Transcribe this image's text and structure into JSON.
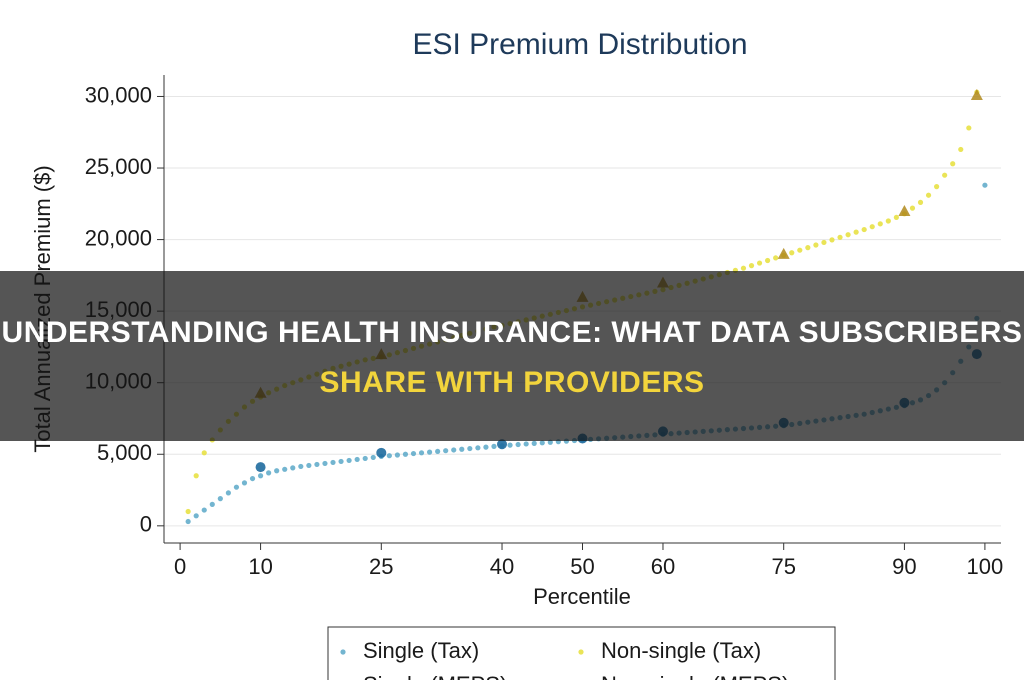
{
  "chart_data": {
    "type": "scatter",
    "title": "ESI Premium Distribution",
    "x_label": "Percentile",
    "y_label": "Total Annualized Premium ($)",
    "xlim": [
      -2,
      102
    ],
    "ylim": [
      -1200,
      31500
    ],
    "xticks": [
      0,
      10,
      25,
      40,
      50,
      60,
      75,
      90,
      100
    ],
    "yticks": [
      0,
      {
        "value": 5000,
        "label": "5,000"
      },
      {
        "value": 10000,
        "label": "10,000"
      },
      {
        "value": 15000,
        "label": "15,000"
      },
      {
        "value": 20000,
        "label": "20,000"
      },
      {
        "value": 25000,
        "label": "25,000"
      },
      {
        "value": 30000,
        "label": "30,000"
      }
    ],
    "grid": true,
    "series": [
      {
        "name": "Single (Tax)",
        "color": "#5aa8c8",
        "marker": "dot",
        "x": [
          1,
          2,
          3,
          4,
          5,
          6,
          7,
          8,
          9,
          10,
          11,
          12,
          13,
          14,
          15,
          16,
          17,
          18,
          19,
          20,
          21,
          22,
          23,
          24,
          25,
          26,
          27,
          28,
          29,
          30,
          31,
          32,
          33,
          34,
          35,
          36,
          37,
          38,
          39,
          40,
          41,
          42,
          43,
          44,
          45,
          46,
          47,
          48,
          49,
          50,
          51,
          52,
          53,
          54,
          55,
          56,
          57,
          58,
          59,
          60,
          61,
          62,
          63,
          64,
          65,
          66,
          67,
          68,
          69,
          70,
          71,
          72,
          73,
          74,
          75,
          76,
          77,
          78,
          79,
          80,
          81,
          82,
          83,
          84,
          85,
          86,
          87,
          88,
          89,
          90,
          91,
          92,
          93,
          94,
          95,
          96,
          97,
          98,
          99,
          100
        ],
        "values": [
          300,
          700,
          1100,
          1500,
          1900,
          2300,
          2700,
          3000,
          3300,
          3500,
          3700,
          3850,
          3950,
          4050,
          4150,
          4220,
          4290,
          4360,
          4430,
          4500,
          4570,
          4640,
          4710,
          4780,
          4850,
          4900,
          4950,
          5000,
          5050,
          5100,
          5150,
          5200,
          5250,
          5300,
          5350,
          5400,
          5450,
          5500,
          5550,
          5600,
          5640,
          5680,
          5720,
          5760,
          5800,
          5840,
          5880,
          5920,
          5960,
          6000,
          6040,
          6080,
          6120,
          6160,
          6200,
          6240,
          6280,
          6320,
          6360,
          6400,
          6440,
          6480,
          6520,
          6560,
          6600,
          6640,
          6680,
          6720,
          6760,
          6800,
          6840,
          6880,
          6920,
          6960,
          7000,
          7080,
          7160,
          7240,
          7320,
          7400,
          7480,
          7560,
          7640,
          7720,
          7800,
          7920,
          8040,
          8160,
          8280,
          8400,
          8600,
          8800,
          9100,
          9500,
          10000,
          10700,
          11500,
          12500,
          14500,
          23800
        ]
      },
      {
        "name": "Non-single (Tax)",
        "color": "#e6df3a",
        "marker": "dot",
        "x": [
          1,
          2,
          3,
          4,
          5,
          6,
          7,
          8,
          9,
          10,
          11,
          12,
          13,
          14,
          15,
          16,
          17,
          18,
          19,
          20,
          21,
          22,
          23,
          24,
          25,
          26,
          27,
          28,
          29,
          30,
          31,
          32,
          33,
          34,
          35,
          36,
          37,
          38,
          39,
          40,
          41,
          42,
          43,
          44,
          45,
          46,
          47,
          48,
          49,
          50,
          51,
          52,
          53,
          54,
          55,
          56,
          57,
          58,
          59,
          60,
          61,
          62,
          63,
          64,
          65,
          66,
          67,
          68,
          69,
          70,
          71,
          72,
          73,
          74,
          75,
          76,
          77,
          78,
          79,
          80,
          81,
          82,
          83,
          84,
          85,
          86,
          87,
          88,
          89,
          90,
          91,
          92,
          93,
          94,
          95,
          96,
          97,
          98,
          99
        ],
        "values": [
          1000,
          3500,
          5100,
          6000,
          6700,
          7300,
          7800,
          8300,
          8700,
          9000,
          9300,
          9550,
          9800,
          10000,
          10200,
          10400,
          10600,
          10800,
          11000,
          11150,
          11300,
          11450,
          11600,
          11700,
          11800,
          11950,
          12100,
          12250,
          12400,
          12550,
          12700,
          12850,
          13000,
          13150,
          13300,
          13450,
          13600,
          13750,
          13900,
          14000,
          14130,
          14260,
          14390,
          14520,
          14650,
          14780,
          14910,
          15040,
          15170,
          15300,
          15420,
          15540,
          15660,
          15780,
          15900,
          16020,
          16140,
          16260,
          16380,
          16500,
          16650,
          16800,
          16950,
          17100,
          17250,
          17400,
          17550,
          17700,
          17850,
          18000,
          18180,
          18360,
          18540,
          18720,
          18900,
          19080,
          19260,
          19440,
          19620,
          19800,
          19980,
          20160,
          20340,
          20520,
          20700,
          20900,
          21100,
          21300,
          21550,
          21800,
          22200,
          22600,
          23100,
          23700,
          24500,
          25300,
          26300,
          27800,
          30300
        ]
      },
      {
        "name": "Single (MEPS)",
        "color": "#1f6b9e",
        "marker": "circle",
        "x": [
          10,
          25,
          40,
          50,
          60,
          75,
          90,
          99
        ],
        "values": [
          4100,
          5100,
          5700,
          6100,
          6600,
          7200,
          8600,
          12000
        ]
      },
      {
        "name": "Non-single (MEPS)",
        "color": "#b0891c",
        "marker": "triangle",
        "x": [
          10,
          25,
          50,
          60,
          75,
          90,
          99
        ],
        "values": [
          9300,
          12000,
          16000,
          17000,
          19000,
          22000,
          30100
        ]
      }
    ]
  },
  "banner": {
    "line1": "UNDERSTANDING HEALTH INSURANCE: WHAT DATA SUBSCRIBERS",
    "line2": "SHARE WITH PROVIDERS"
  }
}
